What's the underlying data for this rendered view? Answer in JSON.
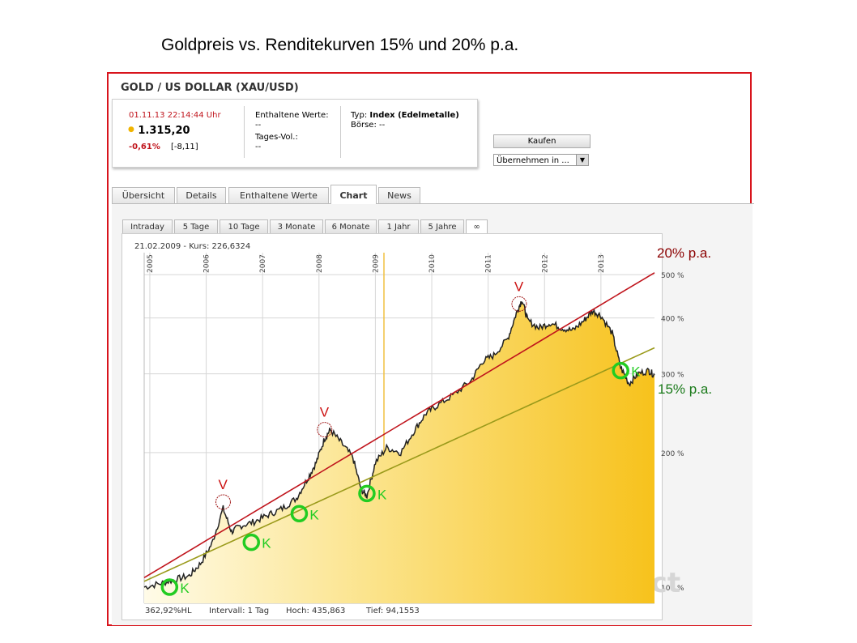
{
  "page_title": "Goldpreis vs. Renditekurven 15% und 20% p.a.",
  "instrument": {
    "name": "GOLD / US DOLLAR (XAU/USD)",
    "datetime": "01.11.13 22:14:44 Uhr",
    "price": "1.315,20",
    "change_pct": "-0,61%",
    "change_abs": "[-8,11]",
    "contained_label": "Enthaltene Werte:",
    "contained_value": "--",
    "volume_label": "Tages-Vol.:",
    "volume_value": "--",
    "type_label": "Typ:",
    "type_value": "Index (Edelmetalle)",
    "exchange_label": "Börse:",
    "exchange_value": "--",
    "buy_label": "Kaufen",
    "adopt_label": "Übernehmen in ...",
    "accent_color": "#c0141c",
    "price_dot_color": "#f0b400"
  },
  "tabs": [
    "Übersicht",
    "Details",
    "Enthaltene Werte",
    "Chart",
    "News"
  ],
  "active_tab": "Chart",
  "range_tabs": [
    "Intraday",
    "5 Tage",
    "10 Tage",
    "3 Monate",
    "6 Monate",
    "1 Jahr",
    "5 Jahre",
    "∞"
  ],
  "active_range_tab": "∞",
  "chart_data": {
    "type": "area",
    "cursor_label": "21.02.2009 - Kurs: 226,6324",
    "x_ticks": [
      "2005",
      "2006",
      "2007",
      "2008",
      "2009",
      "2010",
      "2011",
      "2012",
      "2013"
    ],
    "y_ticks": [
      "100 %",
      "200 %",
      "300 %",
      "400 %",
      "500 %"
    ],
    "y_scale": "log",
    "ylim_percent": [
      92,
      560
    ],
    "xlim_year": [
      2004.9,
      2013.95
    ],
    "grid": true,
    "fill_color": "#f5c518",
    "line_color": "#222222",
    "footer": {
      "scale": "362,92%HL",
      "interval": "Intervall: 1 Tag",
      "high": "Hoch: 435,863",
      "low": "Tief: 94,1553"
    },
    "watermark": ".comdirect",
    "gold_series": {
      "x": [
        2004.9,
        2005.2,
        2005.45,
        2005.7,
        2005.9,
        2006.1,
        2006.3,
        2006.45,
        2006.6,
        2006.85,
        2007.1,
        2007.35,
        2007.6,
        2007.8,
        2007.95,
        2008.1,
        2008.2,
        2008.4,
        2008.6,
        2008.75,
        2008.85,
        2009.0,
        2009.2,
        2009.45,
        2009.7,
        2009.9,
        2010.1,
        2010.4,
        2010.7,
        2010.9,
        2011.1,
        2011.35,
        2011.5,
        2011.6,
        2011.7,
        2011.9,
        2012.1,
        2012.3,
        2012.5,
        2012.7,
        2012.85,
        2013.0,
        2013.2,
        2013.35,
        2013.5,
        2013.65,
        2013.85,
        2013.95
      ],
      "y": [
        100,
        102,
        104,
        106,
        113,
        125,
        150,
        133,
        137,
        140,
        145,
        150,
        158,
        175,
        190,
        215,
        225,
        210,
        195,
        165,
        160,
        190,
        205,
        200,
        225,
        245,
        255,
        270,
        290,
        320,
        330,
        360,
        410,
        440,
        395,
        380,
        390,
        380,
        375,
        395,
        415,
        405,
        370,
        310,
        285,
        300,
        305,
        298
      ]
    },
    "curves": [
      {
        "name": "20% p.a.",
        "color": "#c0141c",
        "x": [
          2004.9,
          2013.95
        ],
        "y": [
          105,
          505
        ]
      },
      {
        "name": "15% p.a.",
        "color": "#9a9a1a",
        "x": [
          2004.9,
          2013.95
        ],
        "y": [
          103,
          343
        ]
      }
    ],
    "annotations": [
      {
        "label": "V",
        "kind": "sell",
        "x": 2006.3,
        "y": 155
      },
      {
        "label": "V",
        "kind": "sell",
        "x": 2008.1,
        "y": 225
      },
      {
        "label": "V",
        "kind": "sell",
        "x": 2011.55,
        "y": 430
      },
      {
        "label": "K",
        "kind": "buy",
        "x": 2005.35,
        "y": 100
      },
      {
        "label": "K",
        "kind": "buy",
        "x": 2006.8,
        "y": 126
      },
      {
        "label": "K",
        "kind": "buy",
        "x": 2007.65,
        "y": 146
      },
      {
        "label": "K",
        "kind": "buy",
        "x": 2008.85,
        "y": 162
      },
      {
        "label": "K",
        "kind": "buy",
        "x": 2013.35,
        "y": 305
      }
    ],
    "sell_color": "#cc1111",
    "buy_color": "#22cc22"
  }
}
